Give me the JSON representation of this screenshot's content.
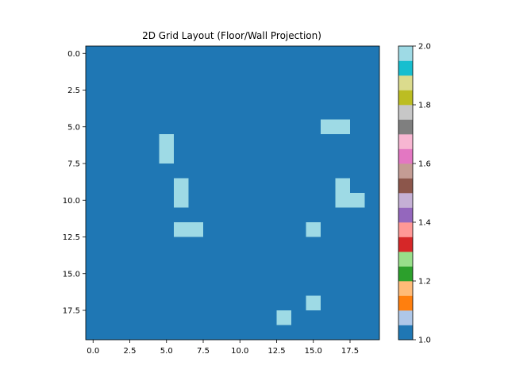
{
  "chart_data": {
    "type": "heatmap",
    "title": "2D Grid Layout (Floor/Wall Projection)",
    "xlabel": "",
    "ylabel": "",
    "grid": false,
    "rows": 20,
    "cols": 20,
    "x_ticks": [
      "0.0",
      "2.5",
      "5.0",
      "7.5",
      "10.0",
      "12.5",
      "15.0",
      "17.5"
    ],
    "x_tick_values": [
      0,
      2.5,
      5,
      7.5,
      10,
      12.5,
      15,
      17.5
    ],
    "y_ticks": [
      "0.0",
      "2.5",
      "5.0",
      "7.5",
      "10.0",
      "12.5",
      "15.0",
      "17.5"
    ],
    "y_tick_values": [
      0,
      2.5,
      5,
      7.5,
      10,
      12.5,
      15,
      17.5
    ],
    "background_value": 1,
    "wall_cells": [
      {
        "row": 5,
        "col": 16,
        "value": 2
      },
      {
        "row": 5,
        "col": 17,
        "value": 2
      },
      {
        "row": 6,
        "col": 5,
        "value": 2
      },
      {
        "row": 7,
        "col": 5,
        "value": 2
      },
      {
        "row": 9,
        "col": 6,
        "value": 2
      },
      {
        "row": 9,
        "col": 17,
        "value": 2
      },
      {
        "row": 10,
        "col": 6,
        "value": 2
      },
      {
        "row": 10,
        "col": 17,
        "value": 2
      },
      {
        "row": 10,
        "col": 18,
        "value": 2
      },
      {
        "row": 12,
        "col": 6,
        "value": 2
      },
      {
        "row": 12,
        "col": 7,
        "value": 2
      },
      {
        "row": 12,
        "col": 15,
        "value": 2
      },
      {
        "row": 17,
        "col": 15,
        "value": 2
      },
      {
        "row": 18,
        "col": 13,
        "value": 2
      }
    ],
    "colorbar": {
      "min": 1.0,
      "max": 2.0,
      "ticks": [
        "1.0",
        "1.2",
        "1.4",
        "1.6",
        "1.8",
        "2.0"
      ],
      "tick_values": [
        1.0,
        1.2,
        1.4,
        1.6,
        1.8,
        2.0
      ],
      "colormap": "tab20",
      "colors": [
        "#1f77b4",
        "#aec7e8",
        "#ff7f0e",
        "#ffbb78",
        "#2ca02c",
        "#98df8a",
        "#d62728",
        "#ff9896",
        "#9467bd",
        "#c5b0d5",
        "#8c564b",
        "#c49c94",
        "#e377c2",
        "#f7b6d2",
        "#7f7f7f",
        "#c7c7c7",
        "#bcbd22",
        "#dbdb8d",
        "#17becf",
        "#9edae5"
      ]
    }
  }
}
